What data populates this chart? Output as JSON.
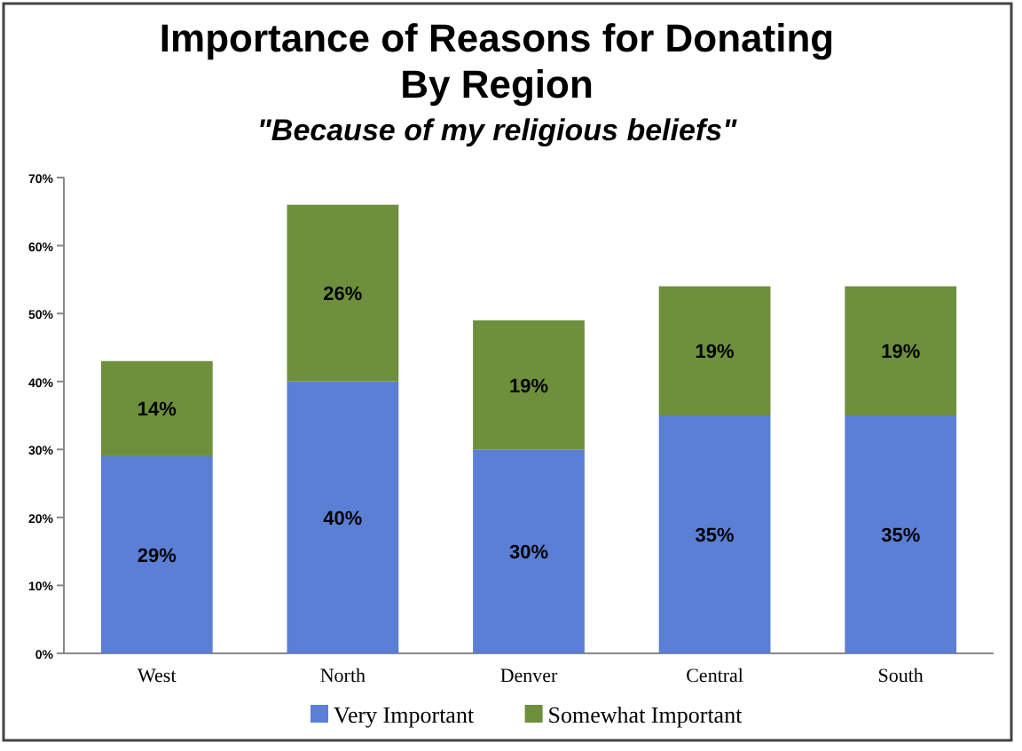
{
  "chart_data": {
    "type": "bar",
    "title": "Importance of Reasons for Donating\nBy Region",
    "subtitle": "\"Because of my religious beliefs\"",
    "categories": [
      "West",
      "North",
      "Denver",
      "Central",
      "South"
    ],
    "stacked": true,
    "series": [
      {
        "name": "Very Important",
        "color": "#5b7fd4",
        "values": [
          29,
          40,
          30,
          35,
          35
        ],
        "value_labels": [
          "29%",
          "40%",
          "30%",
          "35%",
          "35%"
        ]
      },
      {
        "name": "Somewhat Important",
        "color": "#6e8f3c",
        "values": [
          14,
          26,
          19,
          19,
          19
        ],
        "value_labels": [
          "14%",
          "26%",
          "19%",
          "19%",
          "19%"
        ]
      }
    ],
    "ylim": [
      0,
      70
    ],
    "yticks": [
      {
        "value": 0,
        "label": "0%"
      },
      {
        "value": 10,
        "label": "10%"
      },
      {
        "value": 20,
        "label": "20%"
      },
      {
        "value": 30,
        "label": "30%"
      },
      {
        "value": 40,
        "label": "40%"
      },
      {
        "value": 50,
        "label": "50%"
      },
      {
        "value": 60,
        "label": "60%"
      },
      {
        "value": 70,
        "label": "70%"
      }
    ],
    "legend": "bottom"
  }
}
